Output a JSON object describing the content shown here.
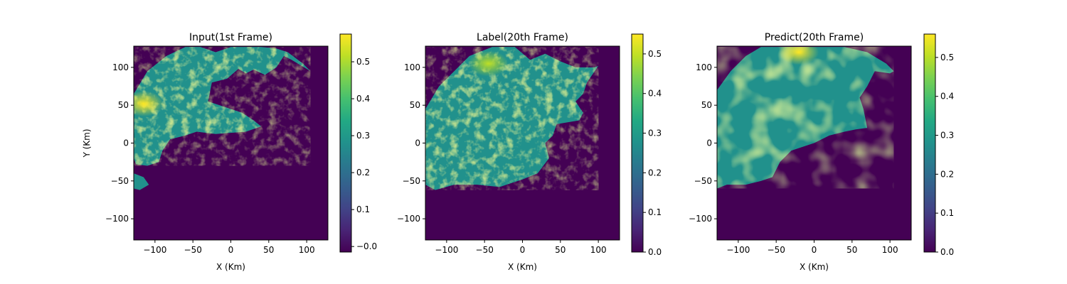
{
  "chart_data": [
    {
      "type": "heatmap",
      "title": "Input(1st Frame)",
      "xlabel": "X (Km)",
      "ylabel": "Y (Km)",
      "xlim": [
        -128,
        128
      ],
      "ylim": [
        -128,
        128
      ],
      "xticks": [
        "−100",
        "−50",
        "0",
        "50",
        "100"
      ],
      "yticks": [
        "100",
        "50",
        "0",
        "−50",
        "−100"
      ],
      "colorbar": {
        "min": -0.015,
        "max": 0.575,
        "ticks": [
          "−0.0",
          "0.1",
          "0.2",
          "0.3",
          "0.4",
          "0.5"
        ],
        "colormap": "viridis"
      },
      "echo_region": {
        "peak_value": 0.55,
        "peak_location": [
          -115,
          52
        ],
        "boundary": [
          [
            -128,
            65
          ],
          [
            -110,
            95
          ],
          [
            -85,
            115
          ],
          [
            -60,
            127
          ],
          [
            -40,
            127
          ],
          [
            -20,
            120
          ],
          [
            0,
            127
          ],
          [
            40,
            127
          ],
          [
            60,
            125
          ],
          [
            75,
            120
          ],
          [
            95,
            105
          ],
          [
            105,
            95
          ],
          [
            100,
            98
          ],
          [
            80,
            110
          ],
          [
            70,
            115
          ],
          [
            60,
            100
          ],
          [
            45,
            90
          ],
          [
            30,
            97
          ],
          [
            20,
            92
          ],
          [
            10,
            98
          ],
          [
            -5,
            85
          ],
          [
            -25,
            80
          ],
          [
            -30,
            55
          ],
          [
            -15,
            50
          ],
          [
            0,
            45
          ],
          [
            15,
            40
          ],
          [
            30,
            30
          ],
          [
            40,
            22
          ],
          [
            20,
            15
          ],
          [
            -20,
            12
          ],
          [
            -45,
            15
          ],
          [
            -60,
            10
          ],
          [
            -80,
            5
          ],
          [
            -90,
            -10
          ],
          [
            -95,
            -25
          ],
          [
            -110,
            -30
          ],
          [
            -125,
            -28
          ],
          [
            -128,
            -20
          ]
        ],
        "fragment": [
          [
            -128,
            -40
          ],
          [
            -115,
            -45
          ],
          [
            -108,
            -55
          ],
          [
            -120,
            -62
          ],
          [
            -128,
            -60
          ]
        ]
      }
    },
    {
      "type": "heatmap",
      "title": "Label(20th Frame)",
      "xlabel": "X (Km)",
      "ylabel": "",
      "xlim": [
        -128,
        128
      ],
      "ylim": [
        -128,
        128
      ],
      "xticks": [
        "−100",
        "−50",
        "0",
        "50",
        "100"
      ],
      "yticks": [
        "100",
        "50",
        "0",
        "−50",
        "−100"
      ],
      "colorbar": {
        "min": 0.0,
        "max": 0.55,
        "ticks": [
          "0.0",
          "0.1",
          "0.2",
          "0.3",
          "0.4",
          "0.5"
        ],
        "colormap": "viridis"
      },
      "echo_region": {
        "peak_value": 0.52,
        "peak_location": [
          -45,
          105
        ],
        "boundary": [
          [
            -128,
            45
          ],
          [
            -110,
            75
          ],
          [
            -90,
            95
          ],
          [
            -70,
            115
          ],
          [
            -40,
            127
          ],
          [
            -10,
            127
          ],
          [
            10,
            110
          ],
          [
            30,
            118
          ],
          [
            50,
            108
          ],
          [
            70,
            100
          ],
          [
            95,
            100
          ],
          [
            100,
            102
          ],
          [
            85,
            80
          ],
          [
            80,
            65
          ],
          [
            70,
            55
          ],
          [
            80,
            40
          ],
          [
            75,
            30
          ],
          [
            45,
            25
          ],
          [
            40,
            10
          ],
          [
            30,
            0
          ],
          [
            35,
            -20
          ],
          [
            20,
            -40
          ],
          [
            0,
            -48
          ],
          [
            -30,
            -58
          ],
          [
            -60,
            -55
          ],
          [
            -90,
            -55
          ],
          [
            -115,
            -62
          ],
          [
            -128,
            -55
          ]
        ]
      }
    },
    {
      "type": "heatmap",
      "title": "Predict(20th Frame)",
      "xlabel": "X (Km)",
      "ylabel": "",
      "xlim": [
        -128,
        128
      ],
      "ylim": [
        -128,
        128
      ],
      "xticks": [
        "−100",
        "−50",
        "0",
        "50",
        "100"
      ],
      "yticks": [
        "100",
        "50",
        "0",
        "−50",
        "−100"
      ],
      "colorbar": {
        "min": 0.0,
        "max": 0.56,
        "ticks": [
          "0.0",
          "0.1",
          "0.2",
          "0.3",
          "0.4",
          "0.5"
        ],
        "colormap": "viridis"
      },
      "echo_region": {
        "peak_value": 0.55,
        "peak_location": [
          -20,
          120
        ],
        "boundary": [
          [
            -128,
            70
          ],
          [
            -110,
            95
          ],
          [
            -90,
            115
          ],
          [
            -70,
            127
          ],
          [
            -30,
            127
          ],
          [
            10,
            127
          ],
          [
            40,
            127
          ],
          [
            70,
            120
          ],
          [
            95,
            105
          ],
          [
            105,
            95
          ],
          [
            100,
            92
          ],
          [
            80,
            95
          ],
          [
            70,
            75
          ],
          [
            60,
            60
          ],
          [
            65,
            45
          ],
          [
            70,
            20
          ],
          [
            55,
            18
          ],
          [
            40,
            15
          ],
          [
            20,
            10
          ],
          [
            0,
            0
          ],
          [
            -30,
            -10
          ],
          [
            -45,
            -25
          ],
          [
            -55,
            -45
          ],
          [
            -70,
            -50
          ],
          [
            -90,
            -55
          ],
          [
            -115,
            -55
          ],
          [
            -128,
            -60
          ]
        ]
      }
    }
  ]
}
